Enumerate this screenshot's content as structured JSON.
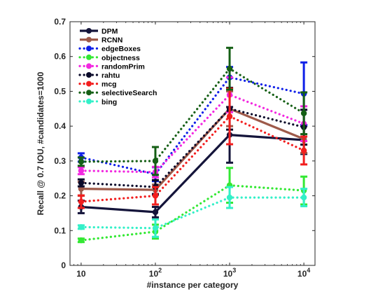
{
  "chart_data": {
    "type": "line",
    "title": "",
    "xlabel": "#instance per category",
    "ylabel": "Recall @ 0.7 IOU, #candidates=1000",
    "xscale": "log",
    "x": [
      10,
      100,
      1000,
      10000
    ],
    "x_tick_labels": [
      {
        "base": "10",
        "exp": ""
      },
      {
        "base": "10",
        "exp": "2"
      },
      {
        "base": "10",
        "exp": "3"
      },
      {
        "base": "10",
        "exp": "4"
      }
    ],
    "ylim": [
      0,
      0.7
    ],
    "y_ticks": [
      0,
      0.1,
      0.2,
      0.3,
      0.4,
      0.5,
      0.6,
      0.7
    ],
    "y_tick_labels": [
      "0",
      "0.1",
      "0.2",
      "0.3",
      "0.4",
      "0.5",
      "0.6",
      "0.7"
    ],
    "grid": false,
    "legend_position": "top-left",
    "series": [
      {
        "name": "DPM",
        "color": "#14143a",
        "style": "solid",
        "values": [
          0.168,
          0.153,
          0.375,
          0.36
        ],
        "err": [
          0.018,
          0.015,
          0.08,
          0.04
        ]
      },
      {
        "name": "RCNN",
        "color": "#9e5a4a",
        "style": "solid",
        "values": [
          0.22,
          0.217,
          0.45,
          0.363
        ],
        "err": [
          0.02,
          0.015,
          0.05,
          0.04
        ]
      },
      {
        "name": "edgeBoxes",
        "color": "#0e1fe8",
        "style": "dotted",
        "values": [
          0.31,
          0.262,
          0.54,
          0.493
        ],
        "err": [
          0.012,
          0.02,
          0.03,
          0.09
        ]
      },
      {
        "name": "objectness",
        "color": "#33e833",
        "style": "dotted",
        "values": [
          0.072,
          0.097,
          0.23,
          0.215
        ],
        "err": [
          0.005,
          0.02,
          0.05,
          0.04
        ]
      },
      {
        "name": "randomPrim",
        "color": "#f227e0",
        "style": "dotted",
        "values": [
          0.272,
          0.268,
          0.49,
          0.407
        ],
        "err": [
          0.01,
          0.015,
          0.05,
          0.05
        ]
      },
      {
        "name": "rahtu",
        "color": "#0a0a2a",
        "style": "dotted",
        "values": [
          0.237,
          0.225,
          0.45,
          0.397
        ],
        "err": [
          0.01,
          0.02,
          0.06,
          0.05
        ]
      },
      {
        "name": "mcg",
        "color": "#f21e1e",
        "style": "dotted",
        "values": [
          0.183,
          0.2,
          0.428,
          0.33
        ],
        "err": [
          0.018,
          0.025,
          0.08,
          0.04
        ]
      },
      {
        "name": "selectiveSearch",
        "color": "#155f15",
        "style": "dotted",
        "values": [
          0.298,
          0.3,
          0.565,
          0.437
        ],
        "err": [
          0.012,
          0.04,
          0.06,
          0.06
        ]
      },
      {
        "name": "bing",
        "color": "#33f0c8",
        "style": "dotted",
        "values": [
          0.11,
          0.107,
          0.195,
          0.195
        ],
        "err": [
          0.005,
          0.025,
          0.03,
          0.025
        ]
      }
    ]
  }
}
